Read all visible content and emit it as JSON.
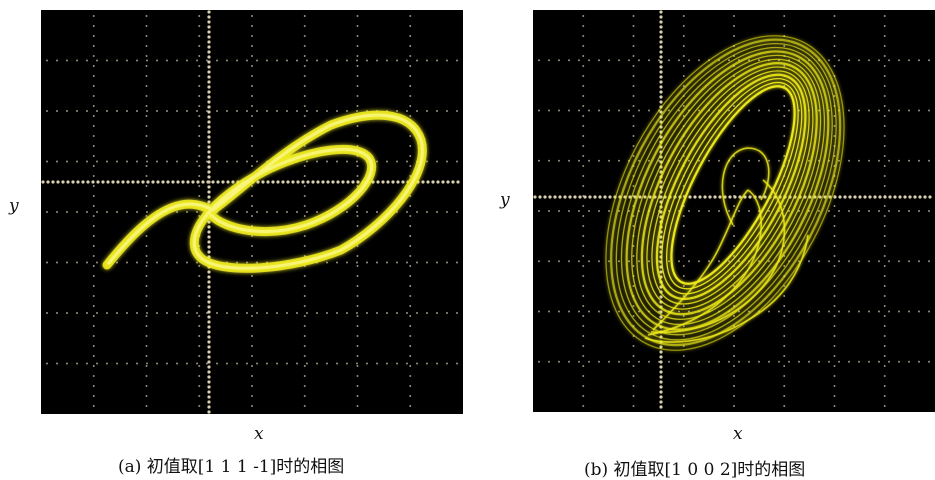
{
  "figures": [
    {
      "id": "a",
      "xlabel": "x",
      "ylabel": "y",
      "caption": "(a) 初值取[1 1 1 -1]时的相图",
      "trace_color": "#f2ee1a",
      "screen_color": "#000000",
      "grid_color": "#d8d0b0"
    },
    {
      "id": "b",
      "xlabel": "x",
      "ylabel": "y",
      "caption": "(b) 初值取[1 0 0 2]时的相图",
      "trace_color": "#f2ee1a",
      "screen_color": "#000000",
      "grid_color": "#d8d0b0"
    }
  ]
}
